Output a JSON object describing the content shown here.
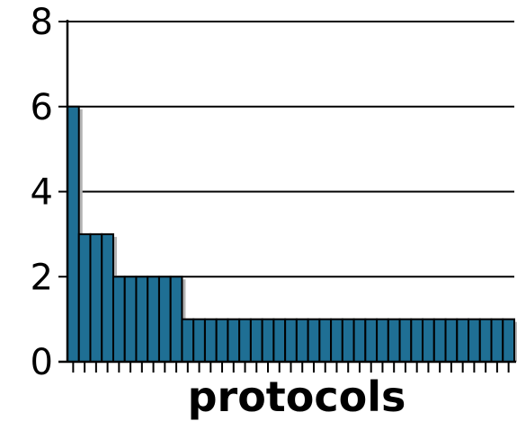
{
  "chart_data": {
    "type": "bar",
    "title": "",
    "xlabel": "protocols",
    "ylabel": "",
    "ylim": [
      0,
      8
    ],
    "yticks": [
      "0",
      "2",
      "4",
      "6",
      "8"
    ],
    "grid": true,
    "values": [
      6,
      3,
      3,
      3,
      2,
      2,
      2,
      2,
      2,
      2,
      1,
      1,
      1,
      1,
      1,
      1,
      1,
      1,
      1,
      1,
      1,
      1,
      1,
      1,
      1,
      1,
      1,
      1,
      1,
      1,
      1,
      1,
      1,
      1,
      1,
      1,
      1,
      1,
      1
    ],
    "colors": {
      "bar": "#1f6f94",
      "shadow": "#b3b3b3",
      "outline": "#000000"
    }
  }
}
